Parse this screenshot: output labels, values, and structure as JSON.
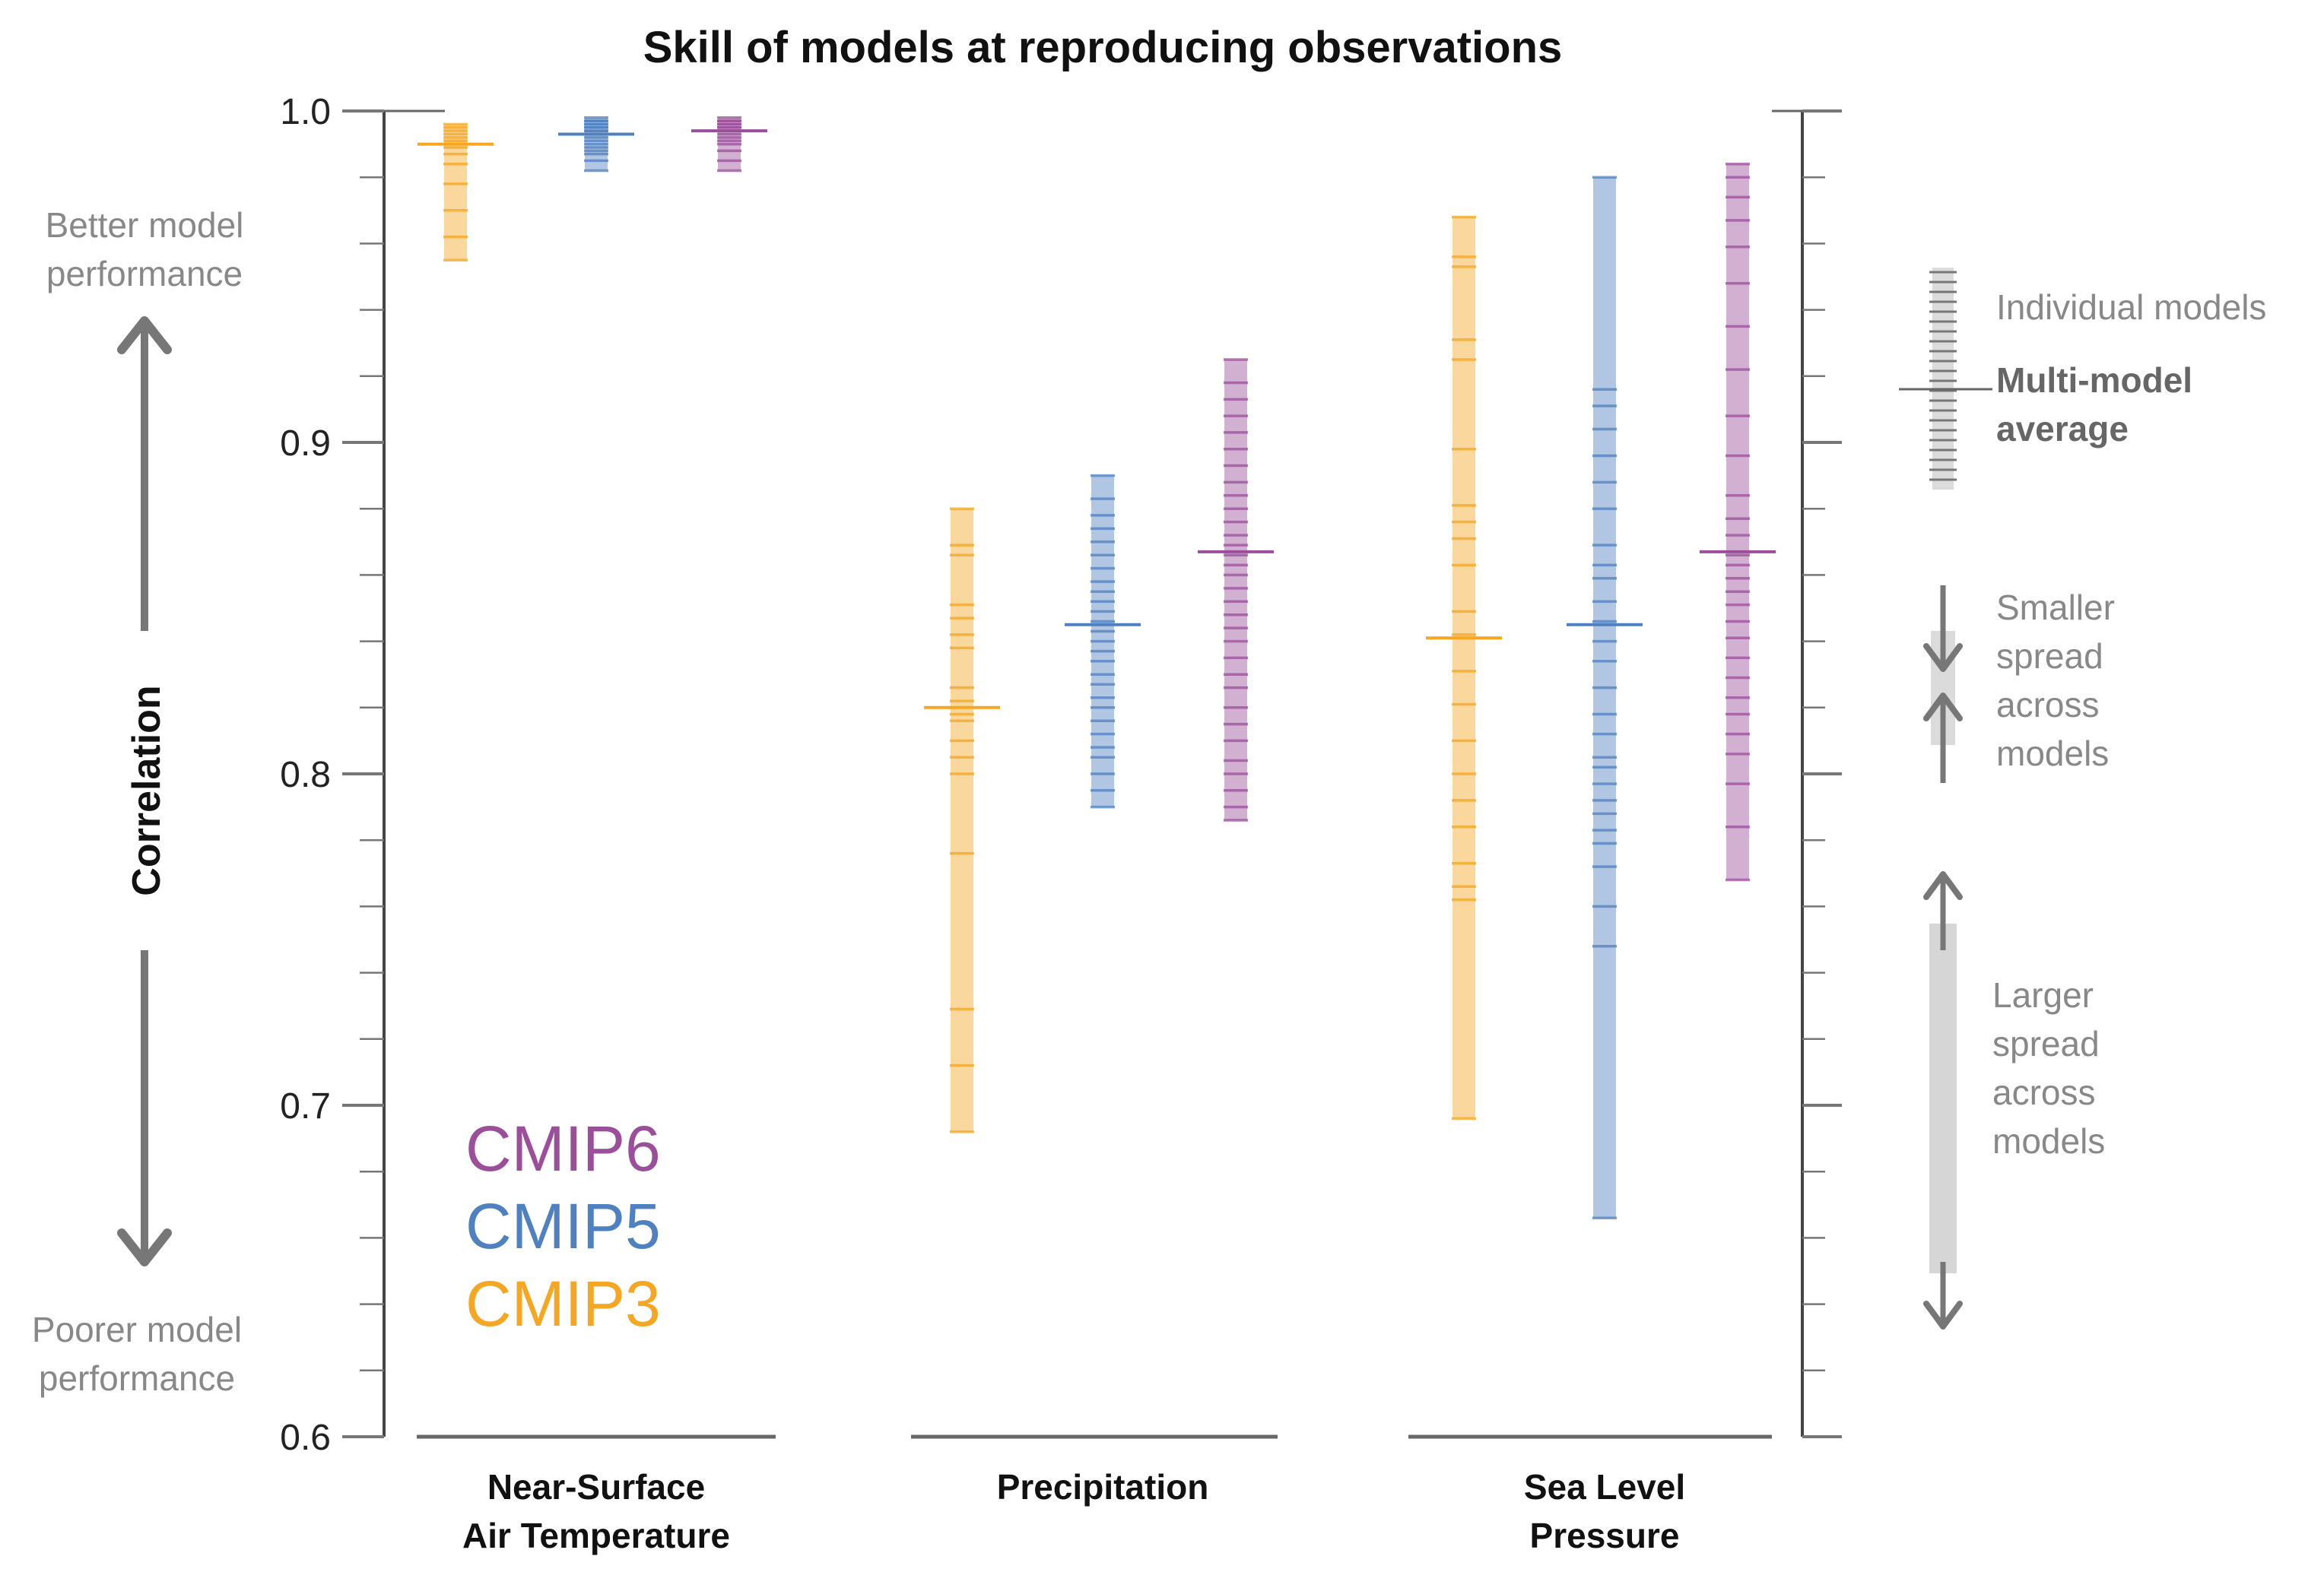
{
  "chart_data": {
    "type": "strip",
    "title": "Skill of models at reproducing observations",
    "ylabel": "Correlation",
    "ylim": [
      0.6,
      1.0
    ],
    "yticks": [
      "0.6",
      "0.7",
      "0.8",
      "0.9",
      "1.0"
    ],
    "better_label": [
      "Better model",
      "performance"
    ],
    "poorer_label": [
      "Poorer model",
      "performance"
    ],
    "legend": [
      {
        "name": "CMIP6",
        "color": "#9b4f9b"
      },
      {
        "name": "CMIP5",
        "color": "#4f80c0"
      },
      {
        "name": "CMIP3",
        "color": "#f5a623"
      }
    ],
    "key": {
      "individual": "Individual models",
      "average": [
        "Multi-model",
        "average"
      ],
      "smaller": [
        "Smaller",
        "spread",
        "across",
        "models"
      ],
      "larger": [
        "Larger",
        "spread",
        "across",
        "models"
      ]
    },
    "groups": [
      {
        "label": [
          "Near-Surface",
          "Air Temperature"
        ],
        "series": [
          {
            "name": "CMIP3",
            "color": "#f5a623",
            "mean": 0.99,
            "values": [
              0.955,
              0.962,
              0.97,
              0.978,
              0.984,
              0.987,
              0.989,
              0.991,
              0.992,
              0.993,
              0.994,
              0.995,
              0.996
            ]
          },
          {
            "name": "CMIP5",
            "color": "#4f80c0",
            "mean": 0.993,
            "values": [
              0.982,
              0.985,
              0.987,
              0.988,
              0.989,
              0.99,
              0.991,
              0.992,
              0.993,
              0.993,
              0.994,
              0.994,
              0.995,
              0.995,
              0.996,
              0.996,
              0.997,
              0.997,
              0.998
            ]
          },
          {
            "name": "CMIP6",
            "color": "#9b4f9b",
            "mean": 0.994,
            "values": [
              0.982,
              0.985,
              0.988,
              0.99,
              0.991,
              0.992,
              0.993,
              0.994,
              0.994,
              0.995,
              0.995,
              0.996,
              0.996,
              0.997,
              0.997,
              0.998
            ]
          }
        ]
      },
      {
        "label": [
          "Precipitation"
        ],
        "series": [
          {
            "name": "CMIP3",
            "color": "#f5a623",
            "mean": 0.82,
            "values": [
              0.692,
              0.712,
              0.729,
              0.776,
              0.8,
              0.805,
              0.81,
              0.816,
              0.818,
              0.822,
              0.826,
              0.838,
              0.842,
              0.847,
              0.851,
              0.866,
              0.869,
              0.88
            ]
          },
          {
            "name": "CMIP5",
            "color": "#4f80c0",
            "mean": 0.845,
            "values": [
              0.79,
              0.795,
              0.8,
              0.805,
              0.808,
              0.812,
              0.816,
              0.82,
              0.823,
              0.827,
              0.83,
              0.834,
              0.837,
              0.84,
              0.843,
              0.846,
              0.849,
              0.852,
              0.855,
              0.858,
              0.862,
              0.866,
              0.87,
              0.874,
              0.878,
              0.883,
              0.89
            ]
          },
          {
            "name": "CMIP6",
            "color": "#9b4f9b",
            "mean": 0.867,
            "values": [
              0.786,
              0.79,
              0.795,
              0.8,
              0.804,
              0.81,
              0.815,
              0.82,
              0.826,
              0.83,
              0.835,
              0.84,
              0.844,
              0.848,
              0.852,
              0.856,
              0.86,
              0.863,
              0.866,
              0.869,
              0.872,
              0.876,
              0.88,
              0.884,
              0.888,
              0.893,
              0.898,
              0.903,
              0.908,
              0.913,
              0.918,
              0.925
            ]
          }
        ]
      },
      {
        "label": [
          "Sea Level",
          "Pressure"
        ],
        "series": [
          {
            "name": "CMIP3",
            "color": "#f5a623",
            "mean": 0.841,
            "values": [
              0.696,
              0.762,
              0.766,
              0.773,
              0.784,
              0.792,
              0.8,
              0.81,
              0.821,
              0.831,
              0.842,
              0.849,
              0.863,
              0.871,
              0.876,
              0.881,
              0.898,
              0.925,
              0.931,
              0.953,
              0.956,
              0.968
            ]
          },
          {
            "name": "CMIP5",
            "color": "#4f80c0",
            "mean": 0.845,
            "values": [
              0.666,
              0.748,
              0.76,
              0.772,
              0.779,
              0.783,
              0.788,
              0.792,
              0.797,
              0.802,
              0.805,
              0.812,
              0.818,
              0.826,
              0.834,
              0.84,
              0.846,
              0.852,
              0.859,
              0.863,
              0.869,
              0.88,
              0.888,
              0.896,
              0.904,
              0.911,
              0.916,
              0.98
            ]
          },
          {
            "name": "CMIP6",
            "color": "#9b4f9b",
            "mean": 0.867,
            "values": [
              0.768,
              0.784,
              0.797,
              0.806,
              0.812,
              0.818,
              0.823,
              0.829,
              0.835,
              0.841,
              0.846,
              0.851,
              0.855,
              0.859,
              0.863,
              0.866,
              0.872,
              0.877,
              0.884,
              0.896,
              0.908,
              0.922,
              0.935,
              0.948,
              0.959,
              0.967,
              0.974,
              0.98,
              0.984
            ]
          }
        ]
      }
    ]
  }
}
